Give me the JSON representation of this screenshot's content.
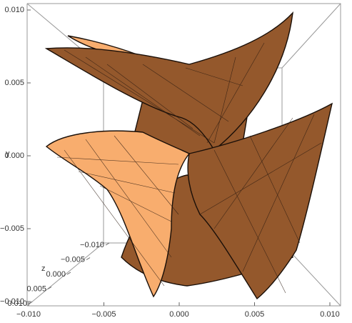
{
  "chart_data": {
    "type": "surface3d",
    "ylabel": "y",
    "zlabel": "z",
    "xlim": [
      -0.01,
      0.01
    ],
    "xticks": [
      {
        "value": -0.01,
        "label": "−0.010"
      },
      {
        "value": -0.005,
        "label": "−0.005"
      },
      {
        "value": 0,
        "label": "0.000"
      },
      {
        "value": 0.005,
        "label": "0.005"
      },
      {
        "value": 0.01,
        "label": "0.010"
      }
    ],
    "ylim": [
      -0.01,
      0.01
    ],
    "yticks": [
      {
        "value": -0.01,
        "label": "−0.010"
      },
      {
        "value": -0.005,
        "label": "−0.005"
      },
      {
        "value": 0,
        "label": "0.000"
      },
      {
        "value": 0.005,
        "label": "0.005"
      },
      {
        "value": 0.01,
        "label": "0.010"
      }
    ],
    "zlim": [
      -0.01,
      0.01
    ],
    "zticks": [
      {
        "value": -0.01,
        "label": "−0.010"
      },
      {
        "value": -0.005,
        "label": "−0.005"
      },
      {
        "value": 0,
        "label": "0.000"
      },
      {
        "value": 0.005,
        "label": "0.005"
      },
      {
        "value": 0.01,
        "label": "0.010"
      }
    ],
    "surface_colors": [
      "#f8ad6e",
      "#94582c"
    ]
  }
}
